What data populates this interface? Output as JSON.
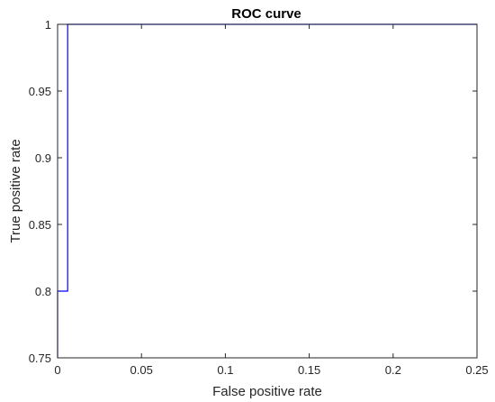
{
  "chart_data": {
    "type": "line",
    "title": "ROC curve",
    "xlabel": "False positive rate",
    "ylabel": "True positive rate",
    "xlim": [
      0,
      0.25
    ],
    "ylim": [
      0.75,
      1
    ],
    "xticks": [
      0,
      0.05,
      0.1,
      0.15,
      0.2,
      0.25
    ],
    "xtick_labels": [
      "0",
      "0.05",
      "0.1",
      "0.15",
      "0.2",
      "0.25"
    ],
    "yticks": [
      0.75,
      0.8,
      0.85,
      0.9,
      0.95,
      1
    ],
    "ytick_labels": [
      "0.75",
      "0.8",
      "0.85",
      "0.9",
      "0.95",
      "1"
    ],
    "grid": false,
    "series": [
      {
        "color": "#0000ff",
        "x": [
          0,
          0,
          0.006,
          0.006,
          0.25
        ],
        "y": [
          0.75,
          0.8,
          0.8,
          1,
          1
        ]
      }
    ]
  }
}
